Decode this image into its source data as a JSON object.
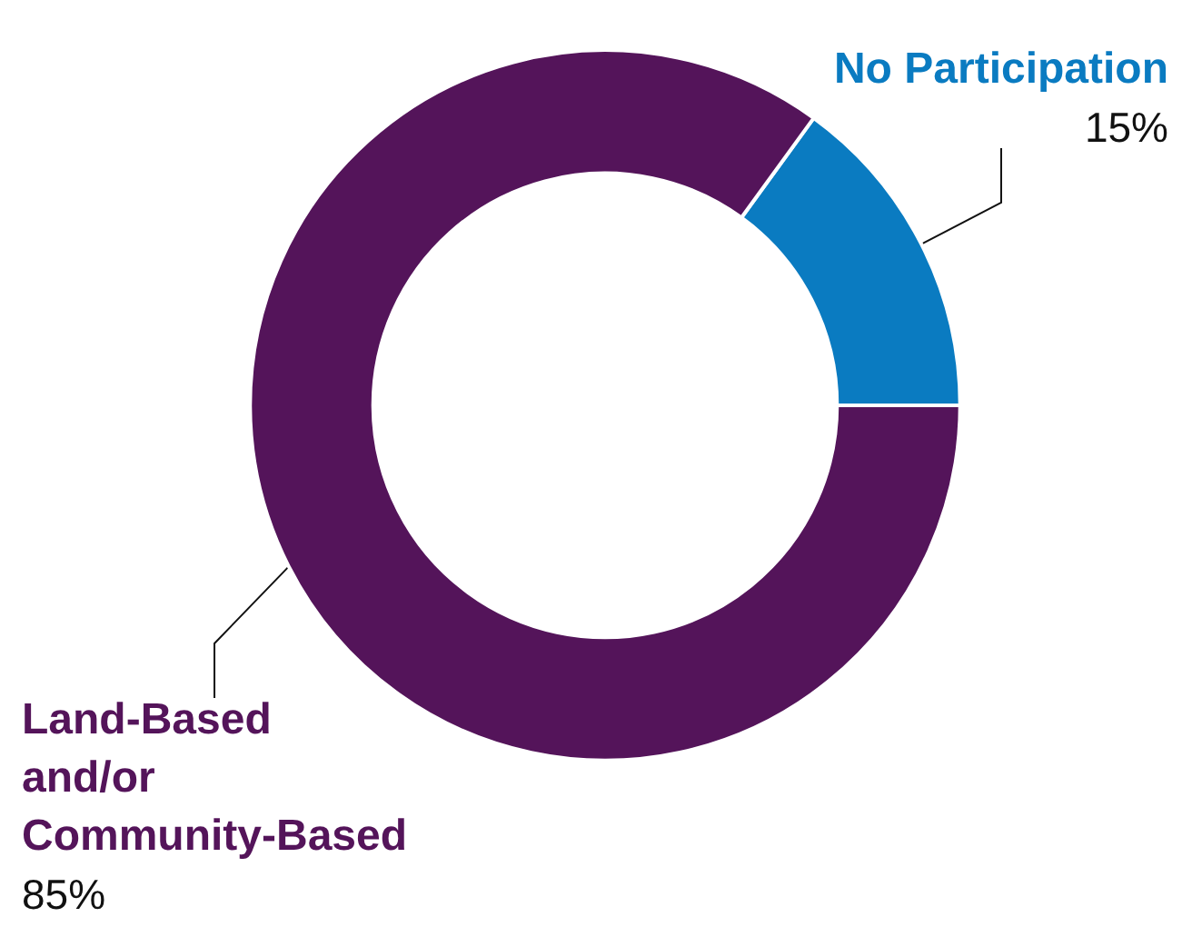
{
  "chart_data": {
    "type": "donut",
    "categories": [
      "No Participation",
      "Land-Based and/or Community-Based"
    ],
    "values": [
      15,
      85
    ],
    "value_labels": [
      "15%",
      "85%"
    ],
    "colors": [
      "#0a7bc1",
      "#54145a"
    ],
    "legend": false
  }
}
